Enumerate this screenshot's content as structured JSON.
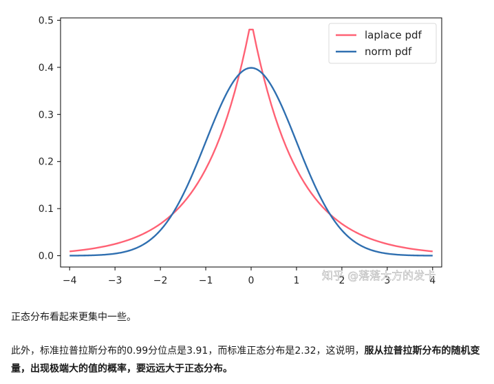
{
  "chart_data": {
    "type": "line",
    "x_ticks": [
      "−4",
      "−3",
      "−2",
      "−1",
      "0",
      "1",
      "2",
      "3",
      "4"
    ],
    "y_ticks": [
      "0.0",
      "0.1",
      "0.2",
      "0.3",
      "0.4",
      "0.5"
    ],
    "xlim": [
      -4.2,
      4.2
    ],
    "ylim": [
      -0.024,
      0.505
    ],
    "x_range": [
      -4,
      4
    ],
    "grid": false,
    "legend_position": "top-right",
    "series": [
      {
        "name": "laplace pdf",
        "color": "#ff6174",
        "distribution": "laplace",
        "peak": 0.5
      },
      {
        "name": "norm pdf",
        "color": "#2f6fb0",
        "distribution": "normal",
        "peak": 0.399
      }
    ]
  },
  "watermark": "知乎 @落落大方的发卡",
  "text": {
    "para1": "正态分布看起来更集中一些。",
    "para2_normal": "此外，标准拉普拉斯分布的0.99分位点是3.91，而标准正态分布是2.32，这说明，",
    "para2_bold": "服从拉普拉斯分布的随机变量，出现极端大的值的概率，要远远大于正态分布。"
  }
}
